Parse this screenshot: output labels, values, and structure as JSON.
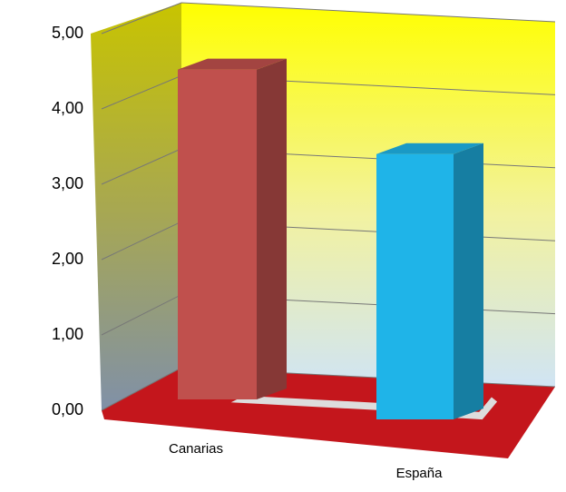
{
  "chart_data": {
    "type": "bar3d",
    "categories": [
      "Canarias",
      "España"
    ],
    "values": [
      4.6,
      3.7
    ],
    "colors": [
      "#c0504d",
      "#1fb4e8"
    ],
    "ylim": [
      0,
      5
    ],
    "yticks": [
      {
        "value": 0,
        "label": "0,00"
      },
      {
        "value": 1,
        "label": "1,00"
      },
      {
        "value": 2,
        "label": "2,00"
      },
      {
        "value": 3,
        "label": "3,00"
      },
      {
        "value": 4,
        "label": "4,00"
      },
      {
        "value": 5,
        "label": "5,00"
      }
    ],
    "grid": true
  }
}
